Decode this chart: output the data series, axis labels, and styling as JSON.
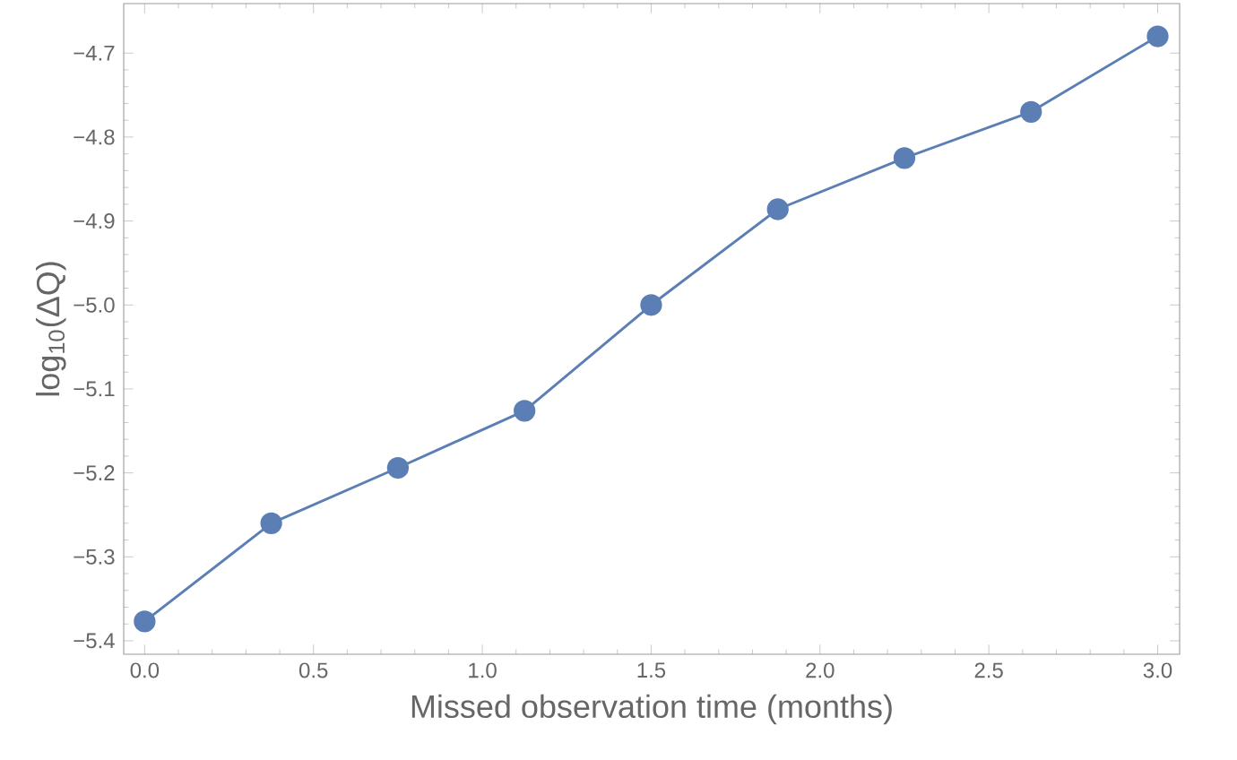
{
  "chart_data": {
    "type": "line",
    "xlabel": "Missed observation time (months)",
    "ylabel": "log$_{10}$(ΔQ)",
    "x": [
      0,
      0.375,
      0.75,
      1.125,
      1.5,
      1.875,
      2.25,
      2.625,
      3.0
    ],
    "series": [
      {
        "color": "#5b7fb5",
        "values": [
          -5.377,
          -5.26,
          -5.194,
          -5.126,
          -5.0,
          -4.886,
          -4.825,
          -4.77,
          -4.68
        ]
      }
    ],
    "xlim": [
      -0.062,
      3.065
    ],
    "ylim": [
      -5.416,
      -4.641
    ],
    "xticks": [
      {
        "value": 0,
        "label": "0.0"
      },
      0.5,
      {
        "value": 1,
        "label": "1.0"
      },
      1.5,
      {
        "value": 2,
        "label": "2.0"
      },
      2.5,
      {
        "value": 3,
        "label": "3.0"
      }
    ],
    "yticks": [
      {
        "value": -5.4,
        "label": "−5.4"
      },
      {
        "value": -5.3,
        "label": "−5.3"
      },
      {
        "value": -5.2,
        "label": "−5.2"
      },
      {
        "value": -5.1,
        "label": "−5.1"
      },
      {
        "value": -5.0,
        "label": "−5.0"
      },
      {
        "value": -4.9,
        "label": "−4.9"
      },
      {
        "value": -4.8,
        "label": "−4.8"
      },
      {
        "value": -4.7,
        "label": "−4.7"
      }
    ],
    "marker": "circle",
    "line_style": "solid"
  }
}
